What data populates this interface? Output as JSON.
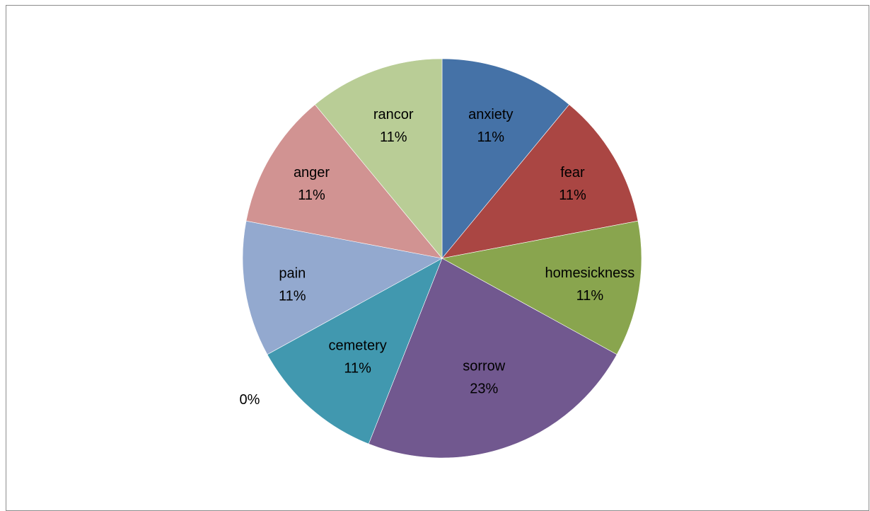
{
  "chart_data": {
    "type": "pie",
    "title": "",
    "legend": "none",
    "slices": [
      {
        "label": "anxiety",
        "percent_label": "11%",
        "value": 11,
        "color": "#4572a7"
      },
      {
        "label": "fear",
        "percent_label": "11%",
        "value": 11,
        "color": "#aa4643"
      },
      {
        "label": "homesickness",
        "percent_label": "11%",
        "value": 11,
        "color": "#89a54e"
      },
      {
        "label": "sorrow",
        "percent_label": "23%",
        "value": 23,
        "color": "#71588f"
      },
      {
        "label": "",
        "percent_label": "0%",
        "value": 0,
        "color": "#4198af"
      },
      {
        "label": "cemetery",
        "percent_label": "11%",
        "value": 11,
        "color": "#4198af"
      },
      {
        "label": "pain",
        "percent_label": "11%",
        "value": 11,
        "color": "#93a9cf"
      },
      {
        "label": "anger",
        "percent_label": "11%",
        "value": 11,
        "color": "#d19392"
      },
      {
        "label": "rancor",
        "percent_label": "11%",
        "value": 11,
        "color": "#b9cd96"
      }
    ]
  }
}
